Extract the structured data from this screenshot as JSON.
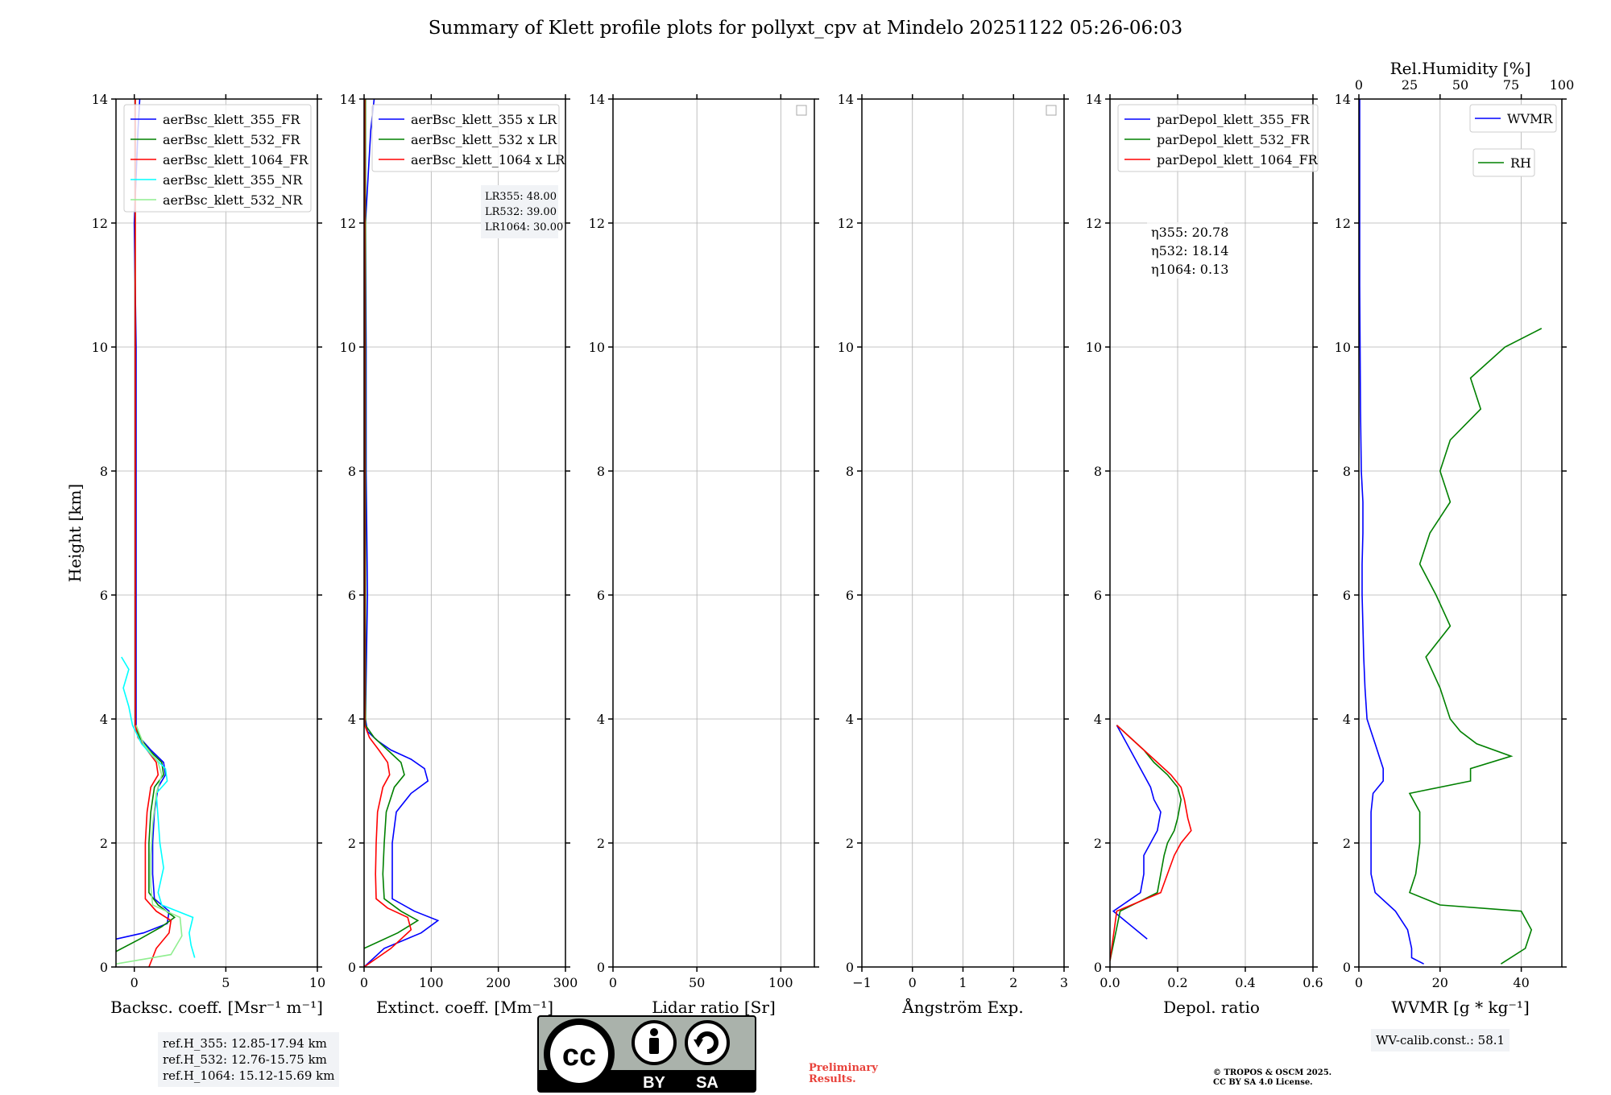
{
  "title": "Summary of Klett profile plots for pollyxt_cpv at Mindelo 20251122 05:26-06:03",
  "y_label": "Height [km]",
  "y_ticks": [
    "0",
    "2",
    "4",
    "6",
    "8",
    "10",
    "12",
    "14"
  ],
  "boxes": {
    "ref_h": [
      "ref.H_355: 12.85-17.94 km",
      "ref.H_532: 12.76-15.75 km",
      "ref.H_1064: 15.12-15.69 km"
    ],
    "wv_calib": "WV-calib.const.: 58.1"
  },
  "prelim": [
    "Preliminary",
    "Results."
  ],
  "copyright": [
    "© TROPOS & OSCM 2025.",
    "CC BY SA 4.0 License."
  ],
  "cc_badge": {
    "by": "BY",
    "sa": "SA"
  },
  "colors": {
    "c355": "#0000ff",
    "c532": "#008000",
    "c1064": "#ff0000",
    "c355nr": "#00ffff",
    "c532nr": "#90ee90"
  },
  "chart_data": [
    {
      "type": "line",
      "xlabel": "Backsc. coeff. [Msr⁻¹ m⁻¹]",
      "xlim": [
        -1,
        10
      ],
      "ylim": [
        0,
        14
      ],
      "xticks": [
        "0",
        "5",
        "10"
      ],
      "legend": [
        "aerBsc_klett_355_FR",
        "aerBsc_klett_532_FR",
        "aerBsc_klett_1064_FR",
        "aerBsc_klett_355_NR",
        "aerBsc_klett_532_NR"
      ],
      "series": [
        {
          "name": "aerBsc_klett_355_FR",
          "h": [
            0.45,
            0.55,
            0.7,
            0.9,
            1.1,
            1.5,
            2.0,
            2.5,
            2.9,
            3.1,
            3.3,
            3.5,
            3.7,
            3.9,
            4.5,
            6,
            8,
            10,
            12,
            13.5,
            14
          ],
          "v": [
            -1,
            0.5,
            1.8,
            1.9,
            1.1,
            1.0,
            1.0,
            1.1,
            1.3,
            1.7,
            1.6,
            0.9,
            0.3,
            0.1,
            0.1,
            0.1,
            0.1,
            0.1,
            0,
            0.2,
            0.3
          ]
        },
        {
          "name": "aerBsc_klett_532_FR",
          "h": [
            0.25,
            0.45,
            0.65,
            0.8,
            1.0,
            1.2,
            1.6,
            2.0,
            2.5,
            2.9,
            3.1,
            3.3,
            3.5,
            3.7,
            3.9,
            5,
            8,
            12,
            14
          ],
          "v": [
            -1,
            0.3,
            1.5,
            2.2,
            1.3,
            0.8,
            0.8,
            0.8,
            0.9,
            1.1,
            1.6,
            1.5,
            0.8,
            0.3,
            0.05,
            0.05,
            0.05,
            0.05,
            0.05
          ]
        },
        {
          "name": "aerBsc_klett_1064_FR",
          "h": [
            0,
            0.3,
            0.55,
            0.75,
            0.9,
            1.1,
            1.5,
            2.0,
            2.5,
            2.9,
            3.1,
            3.3,
            3.5,
            3.7,
            3.9,
            5,
            8,
            12,
            14
          ],
          "v": [
            0.8,
            1.2,
            1.9,
            2.0,
            1.2,
            0.6,
            0.6,
            0.6,
            0.7,
            0.9,
            1.3,
            1.2,
            0.7,
            0.2,
            0.05,
            0.05,
            0.05,
            0.05,
            0.05
          ]
        },
        {
          "name": "aerBsc_klett_355_NR",
          "h": [
            0.15,
            0.35,
            0.55,
            0.8,
            1.0,
            1.2,
            1.6,
            2.0,
            2.4,
            2.8,
            3.0,
            3.2,
            3.4,
            3.6,
            3.9,
            4.2,
            4.5,
            4.8,
            5.0
          ],
          "v": [
            3.3,
            3.1,
            3.0,
            3.2,
            1.5,
            1.3,
            1.6,
            1.4,
            1.3,
            1.2,
            1.8,
            1.7,
            1.0,
            0.4,
            -0.1,
            -0.3,
            -0.6,
            -0.3,
            -0.7
          ]
        },
        {
          "name": "aerBsc_klett_532_NR",
          "h": [
            0.05,
            0.2,
            0.5,
            0.8,
            1.0,
            1.3,
            1.8,
            2.3,
            2.8,
            3.1,
            3.3,
            3.6,
            3.9
          ],
          "v": [
            -1,
            2.0,
            2.6,
            2.5,
            1.0,
            0.9,
            0.9,
            1.0,
            1.2,
            1.5,
            1.3,
            0.5,
            0.1
          ]
        }
      ]
    },
    {
      "type": "line",
      "xlabel": "Extinct. coeff. [Mm⁻¹]",
      "xlim": [
        0,
        300
      ],
      "ylim": [
        0,
        14
      ],
      "xticks": [
        "0",
        "100",
        "200",
        "300"
      ],
      "legend": [
        "aerBsc_klett_355 x LR",
        "aerBsc_klett_532 x LR",
        "aerBsc_klett_1064 x LR"
      ],
      "lr_box": [
        "LR355: 48.00",
        "LR532: 39.00",
        "LR1064: 30.00"
      ],
      "series": [
        {
          "name": "aerBsc_klett_355 x LR",
          "h": [
            0,
            0.3,
            0.55,
            0.75,
            0.9,
            1.1,
            1.5,
            2.0,
            2.5,
            2.8,
            3.0,
            3.2,
            3.35,
            3.5,
            3.65,
            3.8,
            4.0,
            6,
            8,
            10,
            12,
            13.5,
            14
          ],
          "v": [
            0,
            30,
            85,
            110,
            75,
            42,
            42,
            42,
            48,
            70,
            95,
            90,
            70,
            40,
            20,
            5,
            2,
            5,
            3,
            3,
            2,
            10,
            15
          ]
        },
        {
          "name": "aerBsc_klett_532 x LR",
          "h": [
            0.3,
            0.55,
            0.75,
            0.9,
            1.1,
            1.5,
            2.0,
            2.5,
            2.9,
            3.1,
            3.3,
            3.5,
            3.7,
            3.9,
            6,
            10,
            14
          ],
          "v": [
            0,
            50,
            80,
            55,
            30,
            28,
            30,
            33,
            45,
            60,
            55,
            35,
            15,
            2,
            2,
            2,
            2
          ]
        },
        {
          "name": "aerBsc_klett_1064 x LR",
          "h": [
            0,
            0.3,
            0.6,
            0.8,
            0.95,
            1.1,
            1.5,
            2.0,
            2.5,
            2.9,
            3.1,
            3.3,
            3.5,
            3.7,
            3.9,
            6,
            10,
            14
          ],
          "v": [
            0,
            40,
            70,
            65,
            35,
            18,
            17,
            18,
            20,
            28,
            38,
            35,
            22,
            8,
            1,
            1,
            1,
            1
          ]
        }
      ]
    },
    {
      "type": "line",
      "xlabel": "Lidar ratio [Sr]",
      "xlim": [
        0,
        120
      ],
      "ylim": [
        0,
        14
      ],
      "xticks": [
        "0",
        "50",
        "100"
      ],
      "series": []
    },
    {
      "type": "line",
      "xlabel": "Ångström Exp.",
      "xlim": [
        -1,
        3
      ],
      "ylim": [
        0,
        14
      ],
      "xticks": [
        "−1",
        "0",
        "1",
        "2",
        "3"
      ],
      "series": []
    },
    {
      "type": "line",
      "xlabel": "Depol. ratio",
      "xlim": [
        0,
        0.6
      ],
      "ylim": [
        0,
        14
      ],
      "xticks": [
        "0.0",
        "0.2",
        "0.4",
        "0.6"
      ],
      "legend": [
        "parDepol_klett_355_FR",
        "parDepol_klett_532_FR",
        "parDepol_klett_1064_FR"
      ],
      "eta_box": [
        "η355: 20.78",
        "η532: 18.14",
        "η1064: 0.13"
      ],
      "series": [
        {
          "name": "parDepol_klett_355_FR",
          "h": [
            0.45,
            0.9,
            1.2,
            1.5,
            1.8,
            2.0,
            2.2,
            2.5,
            2.7,
            2.9,
            3.1,
            3.3,
            3.5,
            3.7,
            3.9
          ],
          "v": [
            0.11,
            0.01,
            0.09,
            0.1,
            0.1,
            0.12,
            0.14,
            0.15,
            0.13,
            0.12,
            0.1,
            0.08,
            0.06,
            0.04,
            0.02
          ]
        },
        {
          "name": "parDepol_klett_532_FR",
          "h": [
            0.1,
            0.9,
            1.2,
            1.5,
            1.8,
            2.0,
            2.2,
            2.4,
            2.7,
            2.9,
            3.1,
            3.3,
            3.5,
            3.7,
            3.9
          ],
          "v": [
            0.0,
            0.03,
            0.14,
            0.15,
            0.16,
            0.17,
            0.19,
            0.2,
            0.21,
            0.2,
            0.17,
            0.13,
            0.1,
            0.06,
            0.02
          ]
        },
        {
          "name": "parDepol_klett_1064_FR",
          "h": [
            0.1,
            0.9,
            1.2,
            1.5,
            1.8,
            2.0,
            2.2,
            2.4,
            2.7,
            2.9,
            3.1,
            3.3,
            3.5,
            3.7,
            3.9
          ],
          "v": [
            0.0,
            0.02,
            0.15,
            0.17,
            0.19,
            0.21,
            0.24,
            0.23,
            0.22,
            0.21,
            0.18,
            0.14,
            0.1,
            0.06,
            0.02
          ]
        }
      ]
    },
    {
      "type": "line",
      "xlabel": "WVMR [g * kg⁻¹]",
      "top_xlabel": "Rel.Humidity [%]",
      "xlim": [
        0,
        50
      ],
      "top_xlim": [
        0,
        100
      ],
      "ylim": [
        0,
        14
      ],
      "xticks": [
        "0",
        "20",
        "40"
      ],
      "top_xticks": [
        "0",
        "25",
        "50",
        "75",
        "100"
      ],
      "legend": [
        "WVMR",
        "RH"
      ],
      "series": [
        {
          "name": "WVMR",
          "h": [
            0.05,
            0.15,
            0.3,
            0.6,
            0.9,
            1.2,
            1.5,
            2.0,
            2.5,
            2.8,
            3.0,
            3.2,
            3.4,
            3.6,
            3.8,
            4.0,
            4.5,
            5.0,
            5.5,
            6.0,
            6.5,
            7.0,
            7.5,
            8,
            9,
            10,
            11,
            12,
            13,
            14
          ],
          "v": [
            16,
            13,
            13,
            12,
            9,
            4,
            3,
            3,
            3,
            3.5,
            6,
            6,
            5,
            4,
            3,
            2,
            1.5,
            1.2,
            1,
            0.8,
            0.8,
            1,
            1,
            0.6,
            0.4,
            0.3,
            0.2,
            0.2,
            0.2,
            0.2
          ]
        },
        {
          "name": "RH",
          "h": [
            0.05,
            0.3,
            0.6,
            0.9,
            1.0,
            1.2,
            1.5,
            2.0,
            2.5,
            2.8,
            3.0,
            3.2,
            3.4,
            3.6,
            3.8,
            4.0,
            4.5,
            5.0,
            5.5,
            6.0,
            6.5,
            7.0,
            7.5,
            8.0,
            8.5,
            9.0,
            9.5,
            10.0,
            10.3
          ],
          "v": [
            70,
            82,
            85,
            80,
            40,
            25,
            28,
            30,
            30,
            25,
            55,
            55,
            75,
            58,
            50,
            45,
            40,
            33,
            45,
            38,
            30,
            35,
            45,
            40,
            45,
            60,
            55,
            72,
            90
          ]
        }
      ]
    }
  ]
}
